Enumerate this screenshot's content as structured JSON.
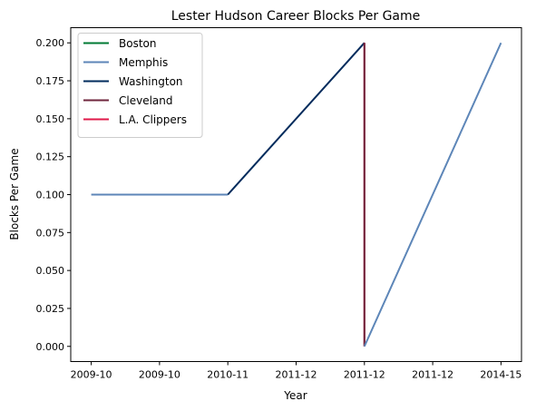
{
  "chart_data": {
    "type": "line",
    "title": "Lester Hudson Career Blocks Per Game",
    "xlabel": "Year",
    "ylabel": "Blocks Per Game",
    "x_positions": [
      0,
      1,
      2,
      3,
      4,
      5,
      6
    ],
    "x_tick_labels": [
      "2009-10",
      "2009-10",
      "2010-11",
      "2011-12",
      "2011-12",
      "2011-12",
      "2014-15"
    ],
    "xlim": [
      -0.3,
      6.3
    ],
    "ylim": [
      -0.01,
      0.21
    ],
    "y_ticks": [
      0.0,
      0.025,
      0.05,
      0.075,
      0.1,
      0.125,
      0.15,
      0.175,
      0.2
    ],
    "y_tick_labels": [
      "0.000",
      "0.025",
      "0.050",
      "0.075",
      "0.100",
      "0.125",
      "0.150",
      "0.175",
      "0.200"
    ],
    "grid": false,
    "legend_position": "top-left",
    "series": [
      {
        "name": "Boston",
        "color": "#007a33",
        "points": [
          [
            0,
            0.1
          ]
        ]
      },
      {
        "name": "Memphis",
        "color": "#5d86b8",
        "points": [
          [
            0,
            0.1
          ],
          [
            2,
            0.1
          ],
          [
            4,
            0.0
          ],
          [
            6,
            0.2
          ]
        ]
      },
      {
        "name": "Washington",
        "color": "#002b5c",
        "points": [
          [
            2,
            0.1
          ],
          [
            4,
            0.2
          ]
        ]
      },
      {
        "name": "Cleveland",
        "color": "#6f263d",
        "points": [
          [
            4,
            0.2
          ],
          [
            4,
            0.0
          ]
        ]
      },
      {
        "name": "L.A. Clippers",
        "color": "#e0194a",
        "points": [
          [
            4,
            0.2
          ]
        ]
      }
    ],
    "segments": [
      {
        "series": 1,
        "from": [
          0,
          0.1
        ],
        "to": [
          2,
          0.1
        ]
      },
      {
        "series": 2,
        "from": [
          2,
          0.1
        ],
        "to": [
          4,
          0.2
        ]
      },
      {
        "series": 4,
        "from": [
          4,
          0.2
        ],
        "to": [
          4,
          0.0
        ]
      },
      {
        "series": 3,
        "from": [
          4,
          0.2
        ],
        "to": [
          4,
          0.0
        ]
      },
      {
        "series": 1,
        "from": [
          4,
          0.0
        ],
        "to": [
          6,
          0.2
        ]
      }
    ]
  }
}
